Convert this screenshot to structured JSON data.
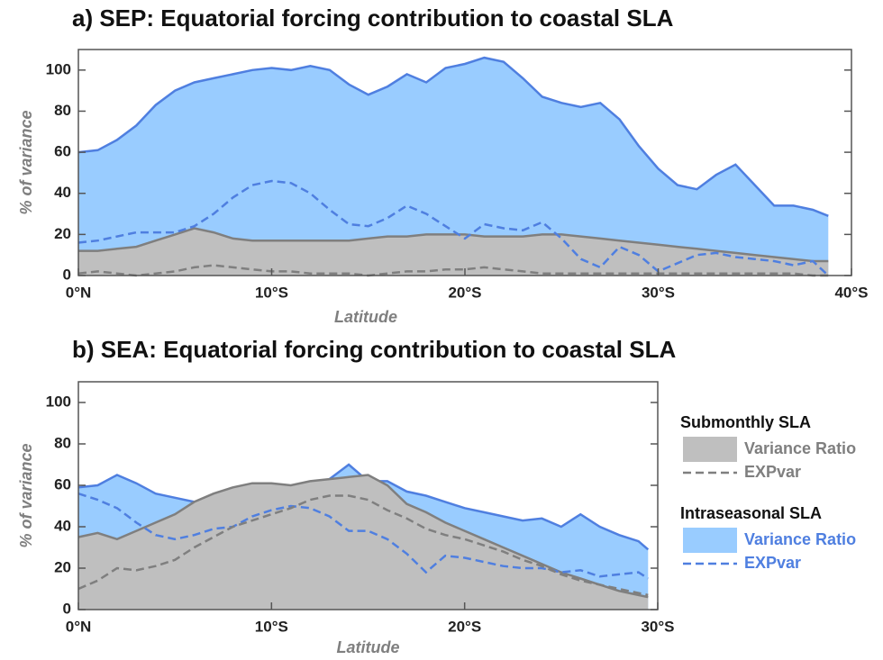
{
  "chart_data": [
    {
      "type": "area_line",
      "title": "a) SEP: Equatorial forcing contribution to coastal SLA",
      "xlabel": "Latitude",
      "ylabel": "% of variance",
      "xlim": [
        0,
        40
      ],
      "ylim": [
        0,
        110
      ],
      "xticks": [
        {
          "value": 0,
          "label": "0°N"
        },
        {
          "value": 10,
          "label": "10°S"
        },
        {
          "value": 20,
          "label": "20°S"
        },
        {
          "value": 30,
          "label": "30°S"
        },
        {
          "value": 40,
          "label": "40°S"
        }
      ],
      "yticks": [
        0,
        20,
        40,
        60,
        80,
        100
      ],
      "x": [
        0,
        1,
        2,
        3,
        4,
        5,
        6,
        7,
        8,
        9,
        10,
        11,
        12,
        13,
        14,
        15,
        16,
        17,
        18,
        19,
        20,
        21,
        22,
        23,
        24,
        25,
        26,
        27,
        28,
        29,
        30,
        31,
        32,
        33,
        34,
        35,
        36,
        37,
        38,
        38.8
      ],
      "series": [
        {
          "style": "area",
          "color": "#4f7fe0",
          "fill": "#99ccff",
          "values": [
            60,
            61,
            66,
            73,
            83,
            90,
            94,
            96,
            98,
            100,
            101,
            100,
            102,
            100,
            93,
            88,
            92,
            98,
            94,
            101,
            103,
            106,
            104,
            96,
            87,
            84,
            82,
            84,
            76,
            63,
            52,
            44,
            42,
            49,
            54,
            44,
            34,
            34,
            32,
            29
          ]
        },
        {
          "style": "area",
          "color": "#7f7f7f",
          "fill": "#bfbfbf",
          "values": [
            12,
            12,
            13,
            14,
            17,
            20,
            23,
            21,
            18,
            17,
            17,
            17,
            17,
            17,
            17,
            18,
            19,
            19,
            20,
            20,
            20,
            19,
            19,
            19,
            20,
            20,
            19,
            18,
            17,
            16,
            15,
            14,
            13,
            12,
            11,
            10,
            9,
            8,
            7,
            7
          ]
        },
        {
          "style": "dashed",
          "color": "#4f7fe0",
          "values": [
            16,
            17,
            19,
            21,
            21,
            21,
            24,
            30,
            38,
            44,
            46,
            45,
            40,
            32,
            25,
            24,
            28,
            34,
            30,
            24,
            18,
            25,
            23,
            22,
            26,
            18,
            8,
            4,
            14,
            10,
            2,
            6,
            10,
            11,
            9,
            8,
            7,
            5,
            7,
            0
          ]
        },
        {
          "style": "dashed",
          "color": "#7f7f7f",
          "values": [
            1,
            2,
            1,
            0,
            1,
            2,
            4,
            5,
            4,
            3,
            2,
            2,
            1,
            1,
            1,
            0,
            1,
            2,
            2,
            3,
            3,
            4,
            3,
            2,
            1,
            1,
            1,
            1,
            1,
            1,
            1,
            1,
            1,
            1,
            1,
            1,
            1,
            1,
            0,
            0
          ]
        }
      ]
    },
    {
      "type": "area_line",
      "title": "b) SEA: Equatorial forcing contribution to coastal SLA",
      "xlabel": "Latitude",
      "ylabel": "% of variance",
      "xlim": [
        0,
        30
      ],
      "ylim": [
        0,
        110
      ],
      "xticks": [
        {
          "value": 0,
          "label": "0°N"
        },
        {
          "value": 10,
          "label": "10°S"
        },
        {
          "value": 20,
          "label": "20°S"
        },
        {
          "value": 30,
          "label": "30°S"
        }
      ],
      "yticks": [
        0,
        20,
        40,
        60,
        80,
        100
      ],
      "legend": "right",
      "x": [
        0,
        1,
        2,
        3,
        4,
        5,
        6,
        7,
        8,
        9,
        10,
        11,
        12,
        13,
        14,
        15,
        16,
        17,
        18,
        19,
        20,
        21,
        22,
        23,
        24,
        25,
        26,
        27,
        28,
        29,
        29.5
      ],
      "series": [
        {
          "name": "Variance Ratio",
          "group": "Intraseasonal SLA",
          "style": "area",
          "color": "#4f7fe0",
          "fill": "#99ccff",
          "values": [
            59,
            60,
            65,
            61,
            56,
            54,
            52,
            50,
            47,
            46,
            46,
            49,
            56,
            63,
            70,
            62,
            62,
            57,
            55,
            52,
            49,
            47,
            45,
            43,
            44,
            40,
            46,
            40,
            36,
            33,
            29
          ]
        },
        {
          "name": "Variance Ratio",
          "group": "Submonthly SLA",
          "style": "area",
          "color": "#7f7f7f",
          "fill": "#bfbfbf",
          "values": [
            35,
            37,
            34,
            38,
            42,
            46,
            52,
            56,
            59,
            61,
            61,
            60,
            62,
            63,
            64,
            65,
            60,
            51,
            47,
            42,
            38,
            34,
            30,
            26,
            22,
            18,
            15,
            12,
            9,
            7,
            6
          ]
        },
        {
          "name": "EXPvar",
          "group": "Intraseasonal SLA",
          "style": "dashed",
          "color": "#4f7fe0",
          "values": [
            56,
            53,
            49,
            42,
            36,
            34,
            36,
            39,
            40,
            45,
            48,
            50,
            49,
            45,
            38,
            38,
            34,
            27,
            18,
            26,
            25,
            23,
            21,
            20,
            20,
            18,
            19,
            16,
            17,
            18,
            15
          ]
        },
        {
          "name": "EXPvar",
          "group": "Submonthly SLA",
          "style": "dashed",
          "color": "#7f7f7f",
          "values": [
            10,
            14,
            20,
            19,
            21,
            24,
            30,
            35,
            40,
            43,
            46,
            49,
            53,
            55,
            55,
            53,
            48,
            44,
            39,
            36,
            34,
            31,
            28,
            24,
            21,
            17,
            14,
            12,
            10,
            8,
            7
          ]
        }
      ]
    }
  ]
}
